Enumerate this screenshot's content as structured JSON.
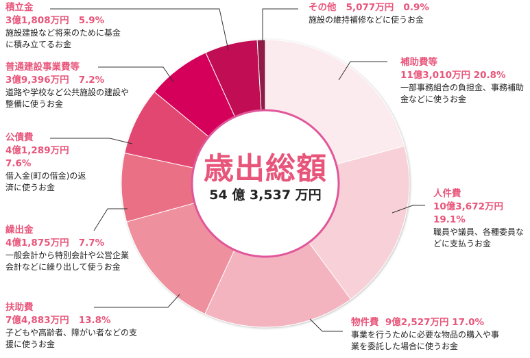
{
  "chart_data": {
    "type": "pie",
    "subtype": "donut",
    "title": "歳出総額",
    "total": "54 億 3,537 万円",
    "start": "top",
    "direction": "clockwise",
    "slices": [
      {
        "name": "補助費等",
        "amount": "11億3,010万円",
        "percent": 20.8,
        "percent_label": "20.8%",
        "desc": "一部事務組合の負担金、事務補助金などに使うお金",
        "color": "#fcebee"
      },
      {
        "name": "人件費",
        "amount": "10億3,672万円",
        "percent": 19.1,
        "percent_label": "19.1%",
        "desc": "職員や議員、各種委員などに支払うお金",
        "color": "#f8d0d7"
      },
      {
        "name": "物件費",
        "amount": "9億2,527万円",
        "percent": 17.0,
        "percent_label": "17.0%",
        "desc": "事業を行うために必要な物品の購入や事業を委託した場合に使うお金",
        "color": "#f4b4bf"
      },
      {
        "name": "扶助費",
        "amount": "7億4,883万円",
        "percent": 13.8,
        "percent_label": "13.8%",
        "desc": "子どもや高齢者、障がい者などの支援に使うお金",
        "color": "#ee909e"
      },
      {
        "name": "繰出金",
        "amount": "4億1,875万円",
        "percent": 7.7,
        "percent_label": "7.7%",
        "desc": "一般会計から特別会計や公営企業会計などに繰り出して使うお金",
        "color": "#ea7086"
      },
      {
        "name": "公債費",
        "amount": "4億1,289万円",
        "percent": 7.6,
        "percent_label": "7.6%",
        "desc": "借入金(町の借金)の返済に使うお金",
        "color": "#e24771"
      },
      {
        "name": "普通建設事業費等",
        "amount": "3億9,396万円",
        "percent": 7.2,
        "percent_label": "7.2%",
        "desc": "道路や学校など公共施設の建設や整備に使うお金",
        "color": "#d4005a"
      },
      {
        "name": "積立金",
        "amount": "3億1,808万円",
        "percent": 5.9,
        "percent_label": "5.9%",
        "desc": "施設建設など将来のために基金に積み立てるお金",
        "color": "#c01152"
      },
      {
        "name": "その他",
        "amount": "5,077万円",
        "percent": 0.9,
        "percent_label": "0.9%",
        "desc": "施設の維持補修などに使うお金",
        "color": "#8f1b46"
      }
    ],
    "accent_color": "#e8557a"
  }
}
